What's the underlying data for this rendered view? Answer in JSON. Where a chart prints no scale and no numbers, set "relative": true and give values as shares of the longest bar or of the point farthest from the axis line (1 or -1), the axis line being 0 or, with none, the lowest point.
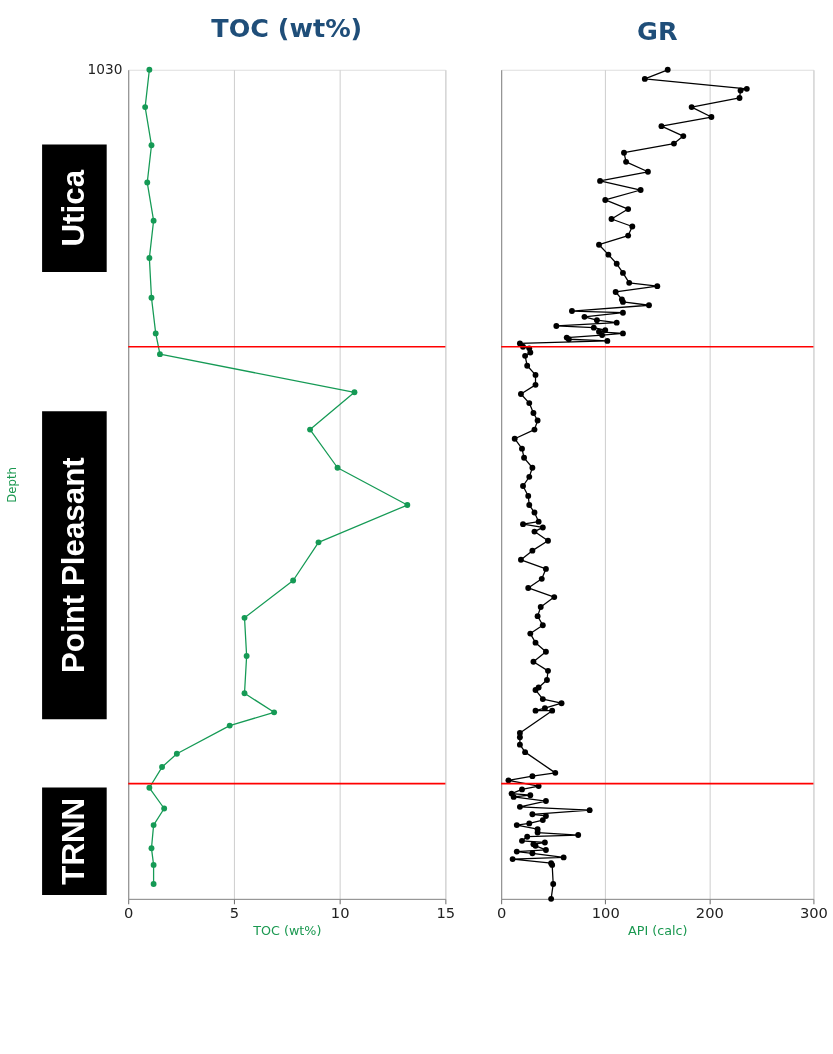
{
  "chart_data": [
    {
      "type": "line",
      "title": "TOC (wt%)",
      "xlabel": "TOC (wt%)",
      "ylabel": "Depth",
      "xlim": [
        0,
        15
      ],
      "xticks": [
        0,
        5,
        10,
        15
      ],
      "relative": true,
      "grid": "x",
      "marker": "circle",
      "line_style": "solid",
      "series": [
        {
          "color": "#159a55",
          "x": [
            1.0,
            0.8,
            1.1,
            0.9,
            1.2,
            1.0,
            1.1,
            1.3,
            1.5,
            10.7,
            8.6,
            9.9,
            13.2,
            9.0,
            7.8,
            5.5,
            5.6,
            5.5,
            6.9,
            4.8,
            2.3,
            1.6,
            1.0,
            1.7,
            1.2,
            1.1,
            1.2,
            1.2
          ],
          "values": [
            1.0,
            0.955,
            0.909,
            0.864,
            0.818,
            0.773,
            0.725,
            0.682,
            0.657,
            0.611,
            0.566,
            0.52,
            0.475,
            0.43,
            0.384,
            0.339,
            0.293,
            0.248,
            0.225,
            0.209,
            0.175,
            0.159,
            0.134,
            0.109,
            0.089,
            0.061,
            0.041,
            0.018
          ]
        }
      ],
      "ref_lines": [
        {
          "axis": "y",
          "value": 0.666,
          "color": "#ff0000"
        },
        {
          "axis": "y",
          "value": 0.139,
          "color": "#ff0000"
        }
      ],
      "annotations": [
        "1030",
        "Utica",
        "Point Pleasant",
        "TRNN"
      ]
    },
    {
      "type": "line",
      "title": "GR",
      "xlabel": "API (calc)",
      "xlim": [
        0,
        300
      ],
      "xticks": [
        0,
        100,
        200,
        300
      ],
      "relative": true,
      "tick_labels": "x",
      "grid": "x",
      "marker": "circle",
      "line_style": "solid",
      "series": [
        {
          "color": "#000000",
          "x": [
            160,
            138,
            236,
            230,
            229,
            183,
            202,
            154,
            175,
            166,
            118,
            120,
            141,
            95,
            134,
            100,
            122,
            106,
            126,
            122,
            94,
            103,
            111,
            117,
            123,
            150,
            110,
            116,
            117,
            142,
            68,
            117,
            80,
            92,
            111,
            53,
            89,
            100,
            94,
            117,
            97,
            63,
            65,
            102,
            18,
            21,
            27,
            28,
            23,
            25,
            33,
            33,
            19,
            27,
            31,
            35,
            32,
            13,
            20,
            22,
            30,
            27,
            21,
            26,
            27,
            32,
            36,
            21,
            40,
            32,
            45,
            30,
            19,
            43,
            39,
            26,
            51,
            38,
            35,
            40,
            28,
            33,
            43,
            31,
            45,
            44,
            36,
            33,
            40,
            58,
            42,
            33,
            49,
            18,
            18,
            18,
            23,
            52,
            30,
            7,
            36,
            20,
            10,
            28,
            12,
            43,
            18,
            85,
            30,
            43,
            40,
            27,
            15,
            35,
            35,
            74,
            25,
            20,
            42,
            31,
            33,
            43,
            15,
            30,
            60,
            11,
            48,
            49,
            50,
            48
          ],
          "values": [
            1.0,
            0.989,
            0.977,
            0.975,
            0.966,
            0.955,
            0.943,
            0.932,
            0.92,
            0.911,
            0.9,
            0.889,
            0.877,
            0.866,
            0.855,
            0.843,
            0.832,
            0.82,
            0.811,
            0.8,
            0.789,
            0.777,
            0.766,
            0.755,
            0.743,
            0.739,
            0.732,
            0.723,
            0.72,
            0.716,
            0.709,
            0.707,
            0.702,
            0.698,
            0.695,
            0.691,
            0.689,
            0.686,
            0.684,
            0.682,
            0.68,
            0.677,
            0.675,
            0.673,
            0.67,
            0.666,
            0.664,
            0.659,
            0.655,
            0.643,
            0.632,
            0.62,
            0.609,
            0.598,
            0.586,
            0.577,
            0.566,
            0.555,
            0.543,
            0.532,
            0.52,
            0.509,
            0.498,
            0.486,
            0.475,
            0.466,
            0.455,
            0.452,
            0.448,
            0.443,
            0.432,
            0.42,
            0.409,
            0.398,
            0.386,
            0.375,
            0.364,
            0.352,
            0.341,
            0.33,
            0.32,
            0.309,
            0.298,
            0.286,
            0.275,
            0.264,
            0.255,
            0.252,
            0.241,
            0.236,
            0.23,
            0.227,
            0.227,
            0.2,
            0.195,
            0.186,
            0.177,
            0.152,
            0.148,
            0.143,
            0.136,
            0.132,
            0.127,
            0.125,
            0.123,
            0.118,
            0.111,
            0.107,
            0.102,
            0.1,
            0.095,
            0.091,
            0.089,
            0.084,
            0.08,
            0.077,
            0.075,
            0.07,
            0.068,
            0.066,
            0.064,
            0.059,
            0.057,
            0.055,
            0.05,
            0.048,
            0.043,
            0.041,
            0.018,
            0.0
          ]
        }
      ],
      "ref_lines": [
        {
          "axis": "y",
          "value": 0.666,
          "color": "#ff0000"
        },
        {
          "axis": "y",
          "value": 0.139,
          "color": "#ff0000"
        }
      ]
    }
  ]
}
